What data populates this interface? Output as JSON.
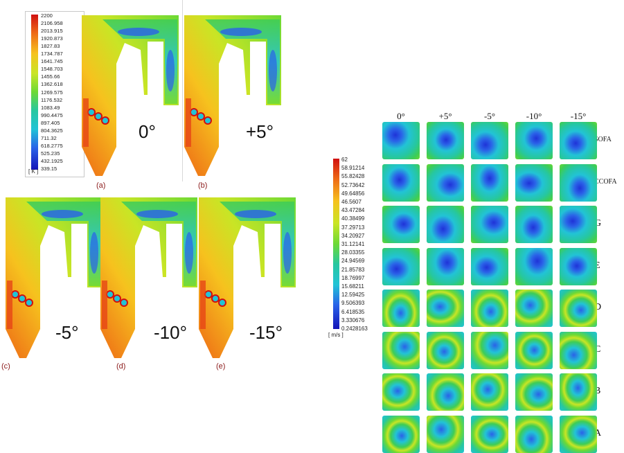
{
  "temperature_legend": {
    "values": [
      "2200",
      "2106.958",
      "2013.915",
      "1920.873",
      "1827.83",
      "1734.787",
      "1641.745",
      "1548.703",
      "1455.66",
      "1362.618",
      "1269.575",
      "1176.532",
      "1083.49",
      "990.4475",
      "897.405",
      "804.3625",
      "711.32",
      "618.2775",
      "525.235",
      "432.1925",
      "339.15"
    ],
    "unit": "[ K ]",
    "colors": [
      "#d01010",
      "#e64016",
      "#ee6a16",
      "#f39a1c",
      "#f6c21e",
      "#e9de22",
      "#c9e525",
      "#9ee22a",
      "#6cd935",
      "#3ecd55",
      "#26c7a0",
      "#22c3d6",
      "#2a9de8",
      "#2a62e8",
      "#1f33d8",
      "#1414b8"
    ]
  },
  "furnace_panels": [
    {
      "label": "(a)",
      "angle": "0°"
    },
    {
      "label": "(b)",
      "angle": "+5°"
    },
    {
      "label": "(c)",
      "angle": "-5°"
    },
    {
      "label": "(d)",
      "angle": "-10°"
    },
    {
      "label": "(e)",
      "angle": "-15°"
    }
  ],
  "velocity_legend": {
    "values": [
      "62",
      "58.91214",
      "55.82428",
      "52.73642",
      "49.64856",
      "46.5607",
      "43.47284",
      "40.38499",
      "37.29713",
      "34.20927",
      "31.12141",
      "28.03355",
      "24.94569",
      "21.85783",
      "18.76997",
      "15.68211",
      "12.59425",
      "9.506393",
      "6.418535",
      "3.330676",
      "0.2428163"
    ],
    "unit": "[ m/s ]"
  },
  "velocity_grid": {
    "columns": [
      "0°",
      "+5°",
      "-5°",
      "-10°",
      "-15°"
    ],
    "rows": [
      "SOFA",
      "CCOFA",
      "G",
      "E",
      "D",
      "C",
      "B",
      "A"
    ]
  }
}
